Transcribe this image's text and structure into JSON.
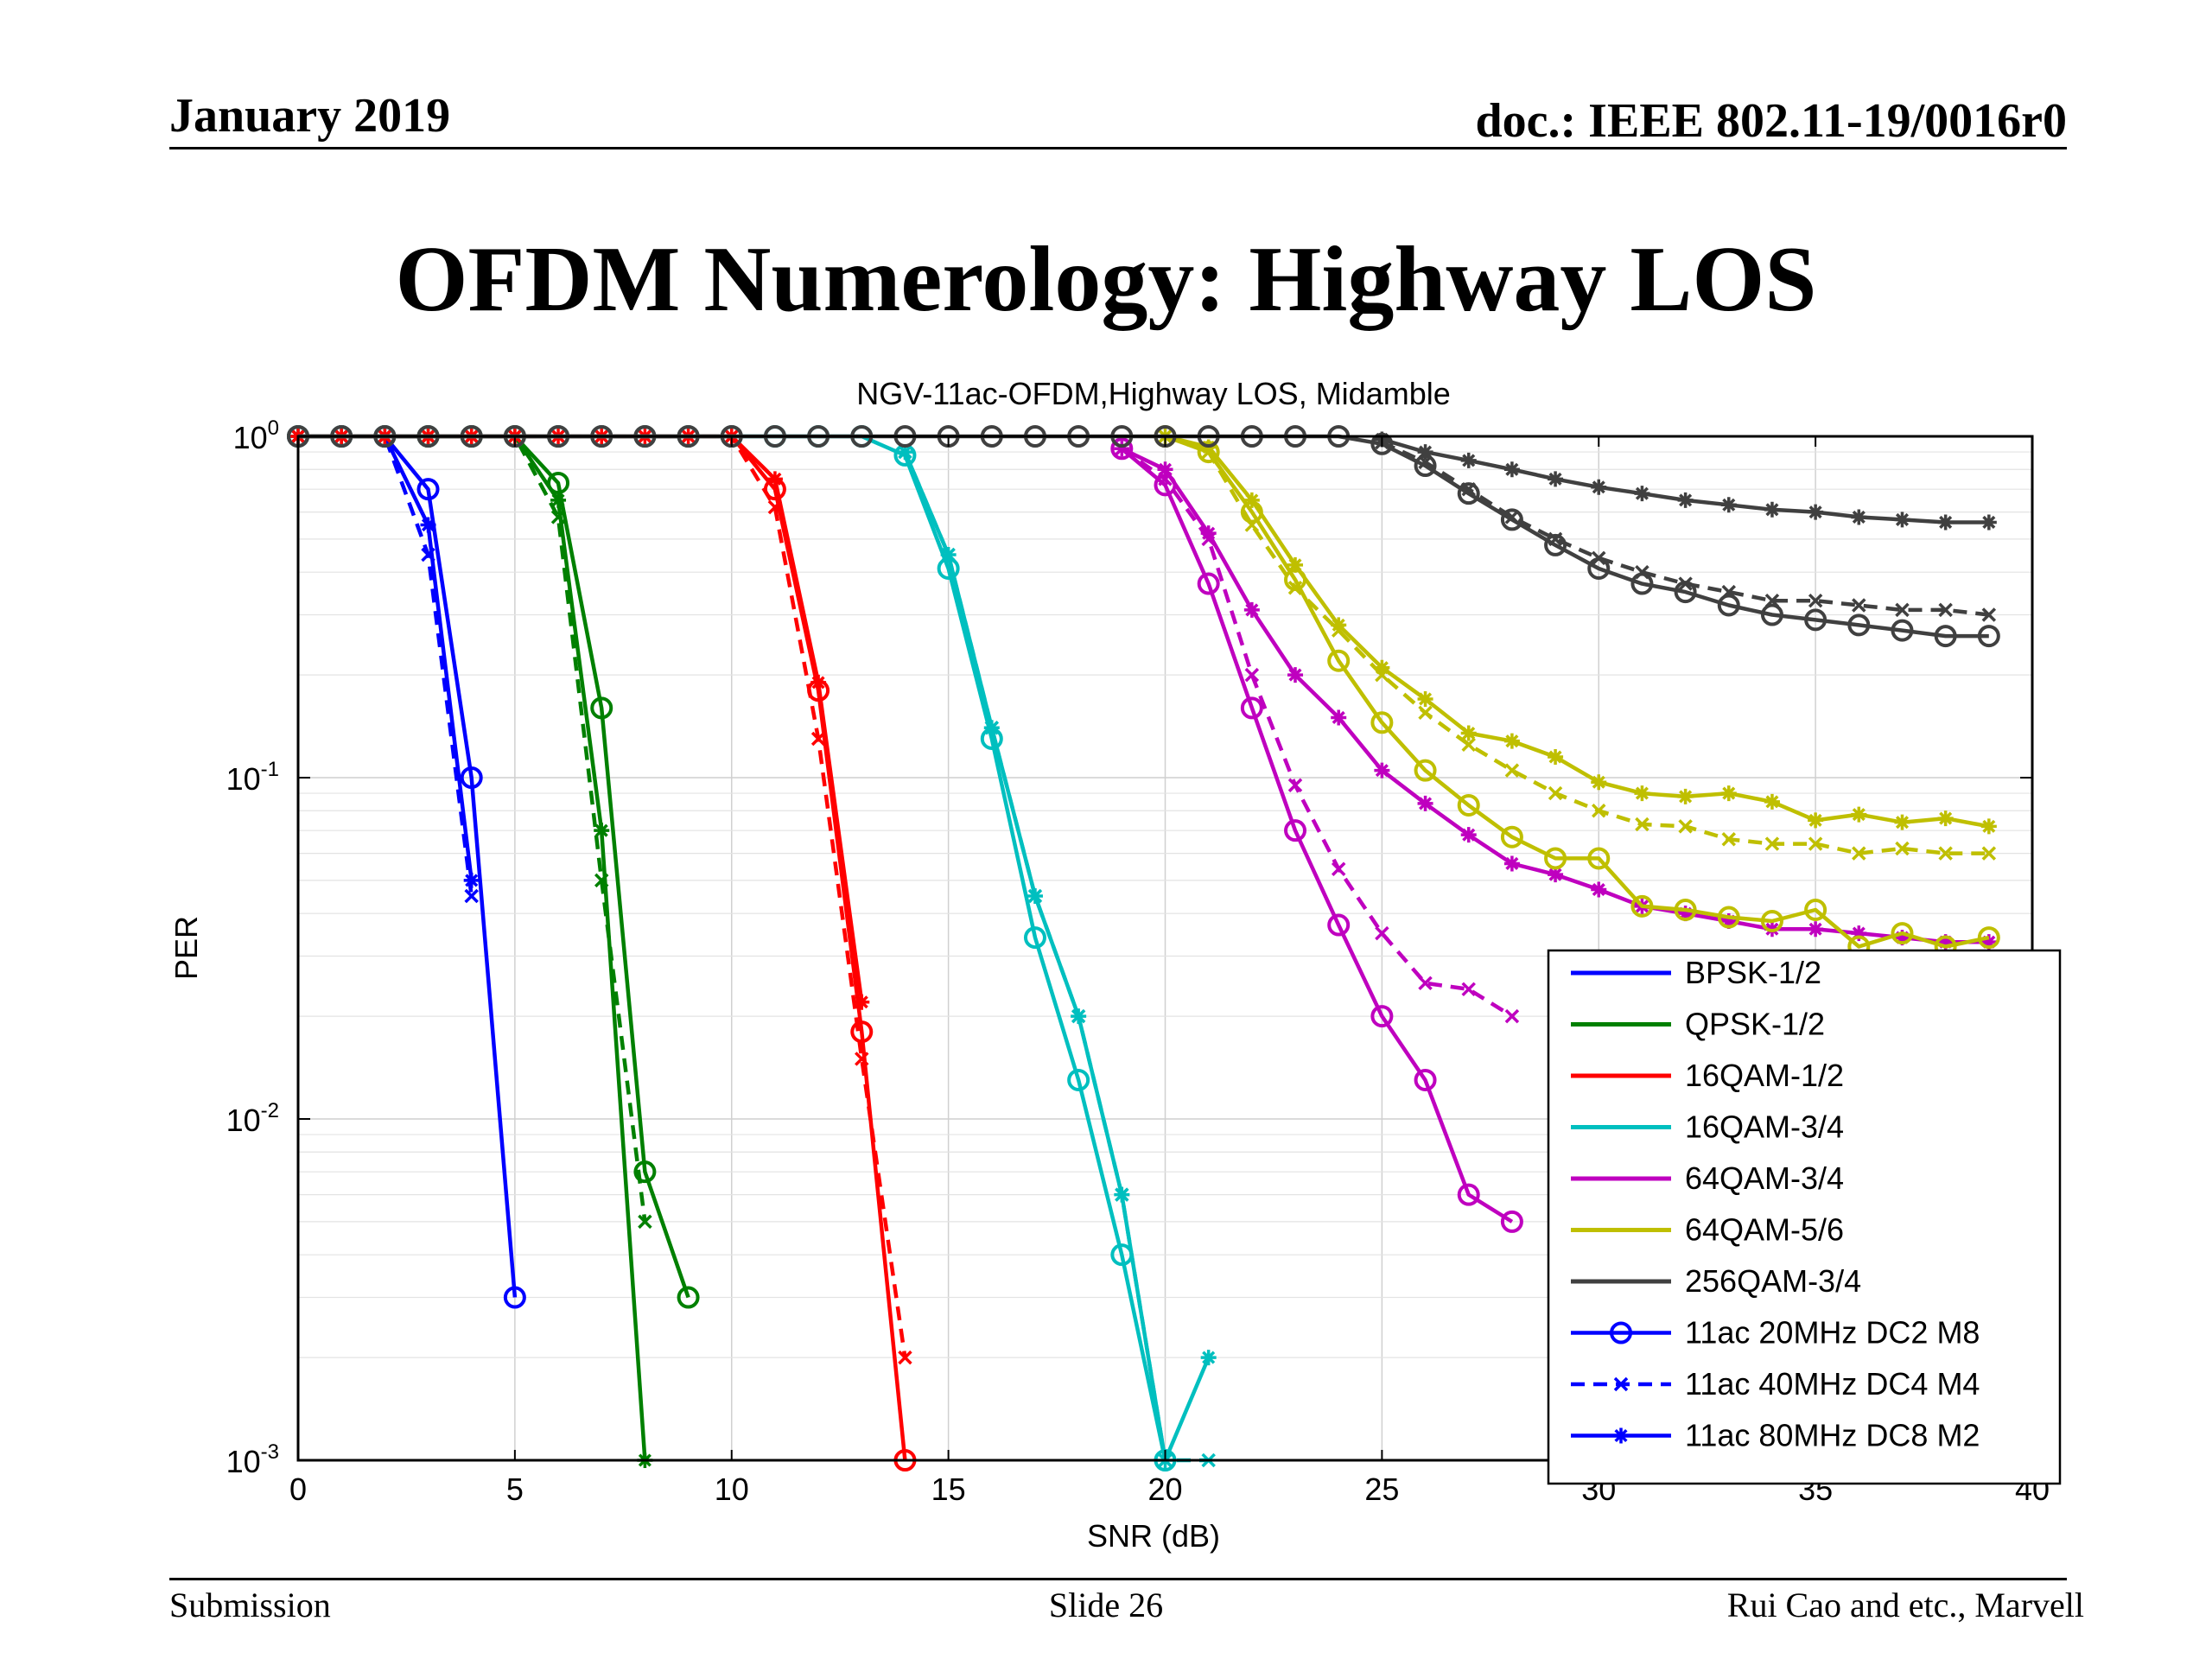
{
  "slide": {
    "header_left": "January 2019",
    "header_right": "doc.: IEEE 802.11-19/0016r0",
    "title": "OFDM Numerology: Highway LOS",
    "footer_left": "Submission",
    "footer_center": "Slide 26",
    "footer_right": "Rui Cao and etc., Marvell"
  },
  "chart_data": {
    "type": "line",
    "title": "NGV-11ac-OFDM,Highway LOS, Midamble",
    "xlabel": "SNR (dB)",
    "ylabel": "PER",
    "xlim": [
      0,
      40
    ],
    "ylim": [
      0.001,
      1
    ],
    "yscale": "log",
    "xticks": [
      "0",
      "5",
      "10",
      "15",
      "20",
      "25",
      "30",
      "35",
      "40"
    ],
    "yticks": [
      {
        "value": 1,
        "base": "10",
        "exp": "0"
      },
      {
        "value": 0.1,
        "base": "10",
        "exp": "-1"
      },
      {
        "value": 0.01,
        "base": "10",
        "exp": "-2"
      },
      {
        "value": 0.001,
        "base": "10",
        "exp": "-3"
      }
    ],
    "grid": true,
    "legend_position": "bottom-right",
    "colors": {
      "BPSK-1/2": "#0000ff",
      "QPSK-1/2": "#008000",
      "16QAM-1/2": "#ff0000",
      "16QAM-3/4": "#00bfbf",
      "64QAM-3/4": "#bf00bf",
      "64QAM-5/6": "#bfbf00",
      "256QAM-3/4": "#404040"
    },
    "legend": {
      "mcs": [
        {
          "label": "BPSK-1/2",
          "color": "#0000ff"
        },
        {
          "label": "QPSK-1/2",
          "color": "#008000"
        },
        {
          "label": "16QAM-1/2",
          "color": "#ff0000"
        },
        {
          "label": "16QAM-3/4",
          "color": "#00bfbf"
        },
        {
          "label": "64QAM-3/4",
          "color": "#bf00bf"
        },
        {
          "label": "64QAM-5/6",
          "color": "#bfbf00"
        },
        {
          "label": "256QAM-3/4",
          "color": "#404040"
        }
      ],
      "styles": [
        {
          "label": "11ac 20MHz DC2 M8",
          "style": "circle-solid"
        },
        {
          "label": "11ac 40MHz DC4 M4",
          "style": "x-dashed"
        },
        {
          "label": "11ac 80MHz DC8 M2",
          "style": "star-solid"
        }
      ]
    },
    "series": [
      {
        "mcs": "BPSK-1/2",
        "style": "circle-solid",
        "x": [
          0,
          1,
          2,
          3,
          4,
          5
        ],
        "y": [
          1,
          1,
          1,
          0.7,
          0.1,
          0.003
        ]
      },
      {
        "mcs": "BPSK-1/2",
        "style": "x-dashed",
        "x": [
          0,
          1,
          2,
          3,
          4
        ],
        "y": [
          1,
          1,
          1,
          0.45,
          0.045
        ]
      },
      {
        "mcs": "BPSK-1/2",
        "style": "star-solid",
        "x": [
          0,
          1,
          2,
          3,
          4
        ],
        "y": [
          1,
          1,
          1,
          0.55,
          0.05
        ]
      },
      {
        "mcs": "QPSK-1/2",
        "style": "circle-solid",
        "x": [
          0,
          1,
          2,
          3,
          4,
          5,
          6,
          7,
          8,
          9
        ],
        "y": [
          1,
          1,
          1,
          1,
          1,
          1,
          0.73,
          0.16,
          0.007,
          0.003
        ]
      },
      {
        "mcs": "QPSK-1/2",
        "style": "x-dashed",
        "x": [
          0,
          1,
          2,
          3,
          4,
          5,
          6,
          7,
          8
        ],
        "y": [
          1,
          1,
          1,
          1,
          1,
          1,
          0.58,
          0.05,
          0.005
        ]
      },
      {
        "mcs": "QPSK-1/2",
        "style": "star-solid",
        "x": [
          0,
          1,
          2,
          3,
          4,
          5,
          6,
          7,
          8
        ],
        "y": [
          1,
          1,
          1,
          1,
          1,
          1,
          0.65,
          0.07,
          0.001
        ]
      },
      {
        "mcs": "16QAM-1/2",
        "style": "circle-solid",
        "x": [
          0,
          1,
          2,
          3,
          4,
          5,
          6,
          7,
          8,
          9,
          10,
          11,
          12,
          13,
          14
        ],
        "y": [
          1,
          1,
          1,
          1,
          1,
          1,
          1,
          1,
          1,
          1,
          1,
          0.7,
          0.18,
          0.018,
          0.001
        ]
      },
      {
        "mcs": "16QAM-1/2",
        "style": "x-dashed",
        "x": [
          0,
          1,
          2,
          3,
          4,
          5,
          6,
          7,
          8,
          9,
          10,
          11,
          12,
          13,
          14
        ],
        "y": [
          1,
          1,
          1,
          1,
          1,
          1,
          1,
          1,
          1,
          1,
          1,
          0.62,
          0.13,
          0.015,
          0.002
        ]
      },
      {
        "mcs": "16QAM-1/2",
        "style": "star-solid",
        "x": [
          0,
          1,
          2,
          3,
          4,
          5,
          6,
          7,
          8,
          9,
          10,
          11,
          12,
          13
        ],
        "y": [
          1,
          1,
          1,
          1,
          1,
          1,
          1,
          1,
          1,
          1,
          1,
          0.75,
          0.19,
          0.022
        ]
      },
      {
        "mcs": "16QAM-3/4",
        "style": "circle-solid",
        "x": [
          0,
          1,
          2,
          3,
          4,
          5,
          6,
          7,
          8,
          9,
          10,
          11,
          12,
          13,
          14,
          15,
          16,
          17,
          18,
          19,
          20
        ],
        "y": [
          1,
          1,
          1,
          1,
          1,
          1,
          1,
          1,
          1,
          1,
          1,
          1,
          1,
          1,
          0.88,
          0.41,
          0.13,
          0.034,
          0.013,
          0.004,
          0.001
        ]
      },
      {
        "mcs": "16QAM-3/4",
        "style": "x-dashed",
        "x": [
          14,
          15,
          16,
          17,
          18,
          19,
          20,
          21
        ],
        "y": [
          0.9,
          0.45,
          0.14,
          0.045,
          0.02,
          0.006,
          0.001,
          0.001
        ]
      },
      {
        "mcs": "16QAM-3/4",
        "style": "star-solid",
        "x": [
          14,
          15,
          16,
          17,
          18,
          19,
          20,
          21
        ],
        "y": [
          0.9,
          0.45,
          0.14,
          0.045,
          0.02,
          0.006,
          0.001,
          0.002
        ]
      },
      {
        "mcs": "64QAM-3/4",
        "style": "circle-solid",
        "x": [
          19,
          20,
          21,
          22,
          23,
          24,
          25,
          26,
          27,
          28
        ],
        "y": [
          0.92,
          0.72,
          0.37,
          0.16,
          0.07,
          0.037,
          0.02,
          0.013,
          0.006,
          0.005
        ]
      },
      {
        "mcs": "64QAM-3/4",
        "style": "x-dashed",
        "x": [
          19,
          20,
          21,
          22,
          23,
          24,
          25,
          26,
          27,
          28
        ],
        "y": [
          0.92,
          0.75,
          0.5,
          0.2,
          0.095,
          0.054,
          0.035,
          0.025,
          0.024,
          0.02
        ]
      },
      {
        "mcs": "64QAM-3/4",
        "style": "star-solid",
        "x": [
          19,
          20,
          21,
          22,
          23,
          24,
          25,
          26,
          27,
          28,
          29,
          30,
          31,
          32,
          33,
          34,
          35,
          36,
          37,
          38,
          39
        ],
        "y": [
          0.92,
          0.8,
          0.52,
          0.31,
          0.2,
          0.15,
          0.105,
          0.084,
          0.068,
          0.056,
          0.052,
          0.047,
          0.042,
          0.04,
          0.038,
          0.036,
          0.036,
          0.035,
          0.034,
          0.033,
          0.033
        ]
      },
      {
        "mcs": "64QAM-5/6",
        "style": "circle-solid",
        "x": [
          20,
          21,
          22,
          23,
          24,
          25,
          26,
          27,
          28,
          29,
          30,
          31,
          32,
          33,
          34,
          35,
          36,
          37,
          38,
          39
        ],
        "y": [
          1,
          0.9,
          0.6,
          0.38,
          0.22,
          0.145,
          0.105,
          0.083,
          0.067,
          0.058,
          0.058,
          0.042,
          0.041,
          0.039,
          0.038,
          0.041,
          0.032,
          0.035,
          0.032,
          0.034
        ]
      },
      {
        "mcs": "64QAM-5/6",
        "style": "x-dashed",
        "x": [
          20,
          21,
          22,
          23,
          24,
          25,
          26,
          27,
          28,
          29,
          30,
          31,
          32,
          33,
          34,
          35,
          36,
          37,
          38,
          39
        ],
        "y": [
          1,
          0.9,
          0.55,
          0.36,
          0.27,
          0.2,
          0.155,
          0.125,
          0.105,
          0.09,
          0.08,
          0.073,
          0.072,
          0.066,
          0.064,
          0.064,
          0.06,
          0.062,
          0.06,
          0.06
        ]
      },
      {
        "mcs": "64QAM-5/6",
        "style": "star-solid",
        "x": [
          20,
          21,
          22,
          23,
          24,
          25,
          26,
          27,
          28,
          29,
          30,
          31,
          32,
          33,
          34,
          35,
          36,
          37,
          38,
          39
        ],
        "y": [
          1,
          0.93,
          0.65,
          0.42,
          0.28,
          0.21,
          0.17,
          0.135,
          0.128,
          0.115,
          0.097,
          0.09,
          0.088,
          0.09,
          0.085,
          0.075,
          0.078,
          0.074,
          0.076,
          0.072
        ]
      },
      {
        "mcs": "256QAM-3/4",
        "style": "circle-solid",
        "x": [
          0,
          1,
          2,
          3,
          4,
          5,
          6,
          7,
          8,
          9,
          10,
          11,
          12,
          13,
          14,
          15,
          16,
          17,
          18,
          19,
          20,
          21,
          22,
          23,
          24,
          25,
          26,
          27,
          28,
          29,
          30,
          31,
          32,
          33,
          34,
          35,
          36,
          37,
          38,
          39
        ],
        "y": [
          1,
          1,
          1,
          1,
          1,
          1,
          1,
          1,
          1,
          1,
          1,
          1,
          1,
          1,
          1,
          1,
          1,
          1,
          1,
          1,
          1,
          1,
          1,
          1,
          1,
          0.95,
          0.82,
          0.68,
          0.57,
          0.48,
          0.41,
          0.37,
          0.35,
          0.32,
          0.3,
          0.29,
          0.28,
          0.27,
          0.26,
          0.26
        ]
      },
      {
        "mcs": "256QAM-3/4",
        "style": "x-dashed",
        "x": [
          25,
          26,
          27,
          28,
          29,
          30,
          31,
          32,
          33,
          34,
          35,
          36,
          37,
          38,
          39
        ],
        "y": [
          0.96,
          0.84,
          0.7,
          0.58,
          0.5,
          0.44,
          0.4,
          0.37,
          0.35,
          0.33,
          0.33,
          0.32,
          0.31,
          0.31,
          0.3
        ]
      },
      {
        "mcs": "256QAM-3/4",
        "style": "star-solid",
        "x": [
          25,
          26,
          27,
          28,
          29,
          30,
          31,
          32,
          33,
          34,
          35,
          36,
          37,
          38,
          39
        ],
        "y": [
          0.98,
          0.9,
          0.85,
          0.8,
          0.75,
          0.71,
          0.68,
          0.65,
          0.63,
          0.61,
          0.6,
          0.58,
          0.57,
          0.56,
          0.56
        ]
      }
    ]
  }
}
